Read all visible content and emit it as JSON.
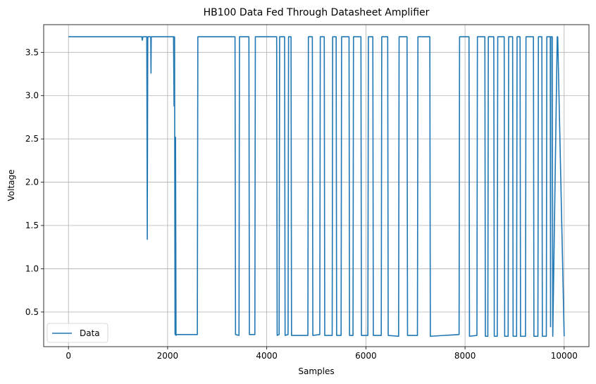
{
  "chart_data": {
    "type": "line",
    "title": "HB100 Data Fed Through Datasheet Amplifier",
    "xlabel": "Samples",
    "ylabel": "Voltage",
    "xlim": [
      -500,
      10500
    ],
    "ylim": [
      0.1,
      3.82
    ],
    "xticks": [
      0,
      2000,
      4000,
      6000,
      8000,
      10000
    ],
    "yticks": [
      0.5,
      1.0,
      1.5,
      2.0,
      2.5,
      3.0,
      3.5
    ],
    "ytick_labels": [
      "0.5",
      "1.0",
      "1.5",
      "2.0",
      "2.5",
      "3.0",
      "3.5"
    ],
    "grid": true,
    "legend_position": "lower-left",
    "color": "#1f77b4",
    "series": [
      {
        "name": "Data",
        "x": [
          0,
          1480,
          1490,
          1500,
          1580,
          1590,
          1600,
          1610,
          1660,
          1665,
          1670,
          1680,
          1690,
          2120,
          2130,
          2140,
          2150,
          2160,
          2170,
          2180,
          2600,
          2610,
          3360,
          3370,
          3440,
          3450,
          3640,
          3650,
          3760,
          3770,
          4200,
          4210,
          4250,
          4260,
          4360,
          4370,
          4430,
          4440,
          4490,
          4500,
          4830,
          4840,
          4920,
          4930,
          5070,
          5080,
          5160,
          5170,
          5320,
          5330,
          5400,
          5410,
          5500,
          5510,
          5660,
          5670,
          5740,
          5750,
          5900,
          5910,
          6040,
          6050,
          6140,
          6150,
          6310,
          6320,
          6440,
          6450,
          6660,
          6670,
          6830,
          6840,
          7040,
          7050,
          7290,
          7300,
          7880,
          7890,
          8080,
          8090,
          8240,
          8250,
          8400,
          8410,
          8460,
          8470,
          8580,
          8590,
          8650,
          8660,
          8790,
          8800,
          8870,
          8880,
          8960,
          8970,
          9040,
          9050,
          9110,
          9120,
          9220,
          9230,
          9380,
          9390,
          9470,
          9480,
          9550,
          9560,
          9640,
          9650,
          9720,
          9725,
          9730,
          9760,
          9770,
          9860,
          9870,
          10000
        ],
        "y": [
          3.68,
          3.68,
          3.64,
          3.68,
          3.68,
          1.34,
          3.68,
          3.68,
          3.68,
          3.26,
          3.68,
          3.68,
          3.68,
          3.68,
          2.88,
          3.68,
          0.24,
          2.52,
          0.23,
          0.24,
          0.24,
          3.68,
          3.68,
          0.24,
          0.23,
          3.68,
          3.68,
          0.24,
          0.24,
          3.68,
          3.68,
          0.23,
          0.24,
          3.68,
          3.68,
          0.23,
          0.24,
          3.68,
          3.68,
          0.23,
          0.23,
          3.68,
          3.68,
          0.23,
          0.24,
          3.68,
          3.68,
          0.23,
          0.23,
          3.68,
          3.68,
          0.23,
          0.23,
          3.68,
          3.68,
          0.23,
          0.23,
          3.68,
          3.68,
          0.23,
          0.23,
          3.68,
          3.68,
          0.23,
          0.23,
          3.68,
          3.68,
          0.23,
          0.22,
          3.68,
          3.68,
          0.23,
          0.23,
          3.68,
          3.68,
          0.22,
          0.24,
          3.68,
          3.68,
          0.22,
          0.23,
          3.68,
          3.68,
          0.22,
          0.22,
          3.68,
          3.68,
          0.22,
          0.22,
          3.68,
          3.68,
          0.22,
          0.22,
          3.68,
          3.68,
          0.22,
          0.22,
          3.68,
          3.68,
          0.22,
          0.22,
          3.68,
          3.68,
          0.22,
          0.22,
          3.68,
          3.68,
          0.22,
          0.22,
          3.68,
          3.68,
          0.33,
          3.68,
          3.68,
          0.22,
          3.68,
          3.68,
          0.22
        ]
      }
    ]
  }
}
